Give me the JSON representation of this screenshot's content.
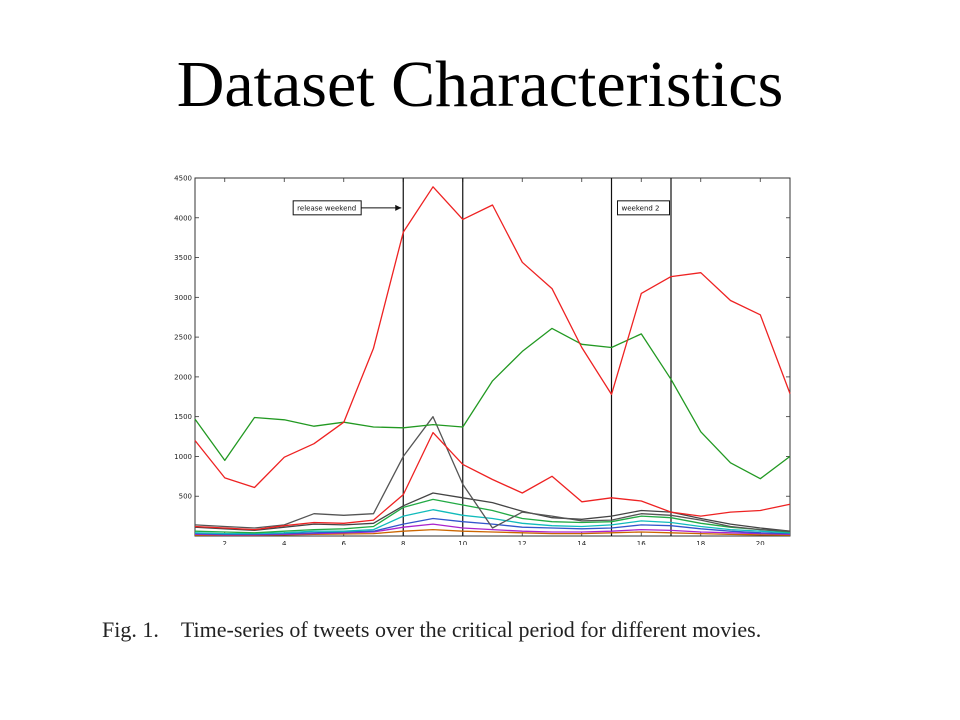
{
  "title": "Dataset Characteristics",
  "caption": {
    "figure_label": "Fig. 1.",
    "text": "Time-series of tweets over the critical period for different movies."
  },
  "chart_data": {
    "type": "line",
    "xlim": [
      1,
      21
    ],
    "ylim": [
      0,
      4500
    ],
    "xticks": [
      2,
      4,
      6,
      8,
      10,
      12,
      14,
      16,
      18,
      20
    ],
    "yticks": [
      500,
      1000,
      1500,
      2000,
      2500,
      3000,
      3500,
      4000,
      4500
    ],
    "ytick_labels": [
      "500",
      "1000",
      "1500",
      "2000",
      "2500",
      "3000",
      "3500",
      "4000",
      "4500"
    ],
    "grid": false,
    "vertical_lines": [
      8,
      10,
      15,
      17
    ],
    "annotations": [
      {
        "label": "release weekend",
        "x_start": 4.3,
        "x_end": 8,
        "y": 4125,
        "arrow": true
      },
      {
        "label": "weekend 2",
        "x_start": 15,
        "x_end": 17,
        "y": 4125,
        "arrow": false
      }
    ],
    "x": [
      1,
      2,
      3,
      4,
      5,
      6,
      7,
      8,
      9,
      10,
      11,
      12,
      13,
      14,
      15,
      16,
      17,
      18,
      19,
      20,
      21
    ],
    "series": [
      {
        "color": "#ee2222",
        "values": [
          1200,
          730,
          610,
          990,
          1160,
          1430,
          2360,
          3820,
          4390,
          3980,
          4160,
          3440,
          3110,
          2370,
          1780,
          3050,
          3260,
          3310,
          2960,
          2780,
          1790
        ]
      },
      {
        "color": "#229922",
        "values": [
          1470,
          950,
          1490,
          1460,
          1380,
          1430,
          1370,
          1360,
          1400,
          1370,
          1950,
          2320,
          2610,
          2410,
          2370,
          2540,
          1970,
          1310,
          920,
          720,
          1000
        ]
      },
      {
        "color": "#ee2222",
        "values": [
          120,
          100,
          80,
          130,
          170,
          160,
          200,
          520,
          1300,
          900,
          710,
          540,
          750,
          430,
          480,
          440,
          300,
          250,
          300,
          320,
          400
        ]
      },
      {
        "color": "#555555",
        "values": [
          140,
          120,
          100,
          140,
          280,
          260,
          280,
          1000,
          1500,
          650,
          100,
          300,
          250,
          190,
          200,
          280,
          260,
          200,
          120,
          80,
          60
        ]
      },
      {
        "color": "#444444",
        "values": [
          110,
          90,
          70,
          110,
          150,
          140,
          160,
          380,
          540,
          480,
          420,
          310,
          230,
          210,
          250,
          320,
          300,
          220,
          150,
          100,
          60
        ]
      },
      {
        "color": "#22aa44",
        "values": [
          60,
          50,
          40,
          60,
          80,
          90,
          120,
          360,
          460,
          390,
          320,
          220,
          180,
          170,
          180,
          250,
          230,
          160,
          110,
          80,
          50
        ]
      },
      {
        "color": "#11bbbb",
        "values": [
          40,
          30,
          30,
          40,
          60,
          60,
          80,
          250,
          330,
          260,
          220,
          160,
          130,
          120,
          140,
          190,
          170,
          120,
          80,
          60,
          40
        ]
      },
      {
        "color": "#3355cc",
        "values": [
          30,
          20,
          20,
          30,
          40,
          50,
          60,
          150,
          220,
          180,
          150,
          110,
          100,
          90,
          100,
          140,
          130,
          90,
          60,
          40,
          30
        ]
      },
      {
        "color": "#aa22cc",
        "values": [
          20,
          15,
          15,
          20,
          30,
          40,
          50,
          110,
          150,
          100,
          80,
          60,
          50,
          50,
          60,
          80,
          70,
          50,
          40,
          30,
          20
        ]
      },
      {
        "color": "#cc6600",
        "values": [
          10,
          10,
          10,
          15,
          20,
          25,
          30,
          60,
          80,
          60,
          50,
          40,
          30,
          30,
          40,
          50,
          40,
          30,
          20,
          15,
          10
        ]
      }
    ]
  }
}
